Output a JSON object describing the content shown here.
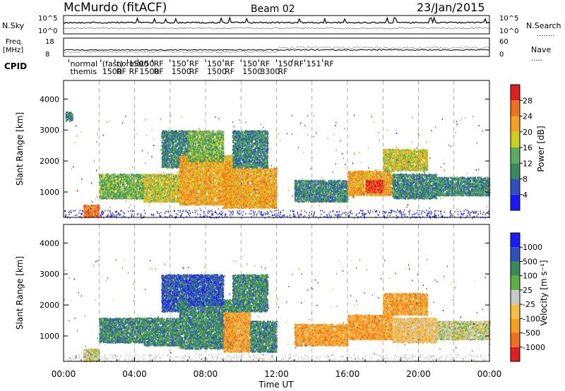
{
  "header": {
    "station": "McMurdo (fitACF)",
    "beam": "Beam 02",
    "date": "23/Jan/2015"
  },
  "noise_panel": {
    "left_label": "N.Sky",
    "right_label": "N.Search",
    "left_ticks": [
      "10^5",
      "10^0"
    ],
    "right_ticks": [
      "10^5",
      "10^0"
    ]
  },
  "freq_panel": {
    "left_label_1": "Freq.",
    "left_label_2": "[MHz]",
    "right_label": "Nave",
    "left_ticks": [
      "18",
      "8"
    ],
    "right_ticks": [
      "60",
      "0"
    ]
  },
  "cpid": {
    "label": "CPID",
    "entries": [
      {
        "hour": 0.3,
        "line1": "normal",
        "line2": "themis"
      },
      {
        "hour": 2.1,
        "line1": "(fast)",
        "line2": "1500"
      },
      {
        "hour": 2.9,
        "line1": "normal",
        "line2": "RF"
      },
      {
        "hour": 3.6,
        "line1": "1500",
        "line2": "RF"
      },
      {
        "hour": 4.2,
        "line1": "150",
        "line2": "1500"
      },
      {
        "hour": 5.0,
        "line1": "RF",
        "line2": "RF"
      },
      {
        "hour": 6.0,
        "line1": "150",
        "line2": "1500"
      },
      {
        "hour": 7.0,
        "line1": "RF",
        "line2": "RF"
      },
      {
        "hour": 8.0,
        "line1": "150",
        "line2": "1500"
      },
      {
        "hour": 9.0,
        "line1": "RF",
        "line2": "RF"
      },
      {
        "hour": 10.0,
        "line1": "150",
        "line2": "1500"
      },
      {
        "hour": 11.0,
        "line1": "RF",
        "line2": "3300"
      },
      {
        "hour": 12.0,
        "line1": "150",
        "line2": "RF"
      },
      {
        "hour": 12.9,
        "line1": "RF",
        "line2": ""
      },
      {
        "hour": 13.6,
        "line1": "151",
        "line2": ""
      },
      {
        "hour": 14.6,
        "line1": "RF",
        "line2": ""
      }
    ]
  },
  "chart_data": [
    {
      "type": "heatmap",
      "name": "power",
      "ylabel": "Slant Range [km]",
      "x_range_hours": [
        0,
        24
      ],
      "ylim": [
        180,
        4600
      ],
      "yticks": [
        1000,
        2000,
        3000,
        4000
      ],
      "colorbar": {
        "label": "Power [dB]",
        "ticks": [
          "4",
          "8",
          "12",
          "16",
          "20",
          "24",
          "28"
        ],
        "colors": [
          "#1a1aff",
          "#3050c0",
          "#3a8a5a",
          "#5aaa60",
          "#c8d020",
          "#f5a020",
          "#f07020",
          "#e02020"
        ]
      },
      "blobs": [
        {
          "t0": 0.1,
          "t1": 0.5,
          "r0": 3300,
          "r1": 3600,
          "level": 2
        },
        {
          "t0": 1.1,
          "t1": 2.0,
          "r0": 200,
          "r1": 600,
          "level": 6
        },
        {
          "t0": 2.0,
          "t1": 4.5,
          "r0": 800,
          "r1": 1600,
          "level": 3
        },
        {
          "t0": 4.5,
          "t1": 6.5,
          "r0": 700,
          "r1": 1600,
          "level": 4
        },
        {
          "t0": 5.5,
          "t1": 7.0,
          "r0": 1800,
          "r1": 3000,
          "level": 2
        },
        {
          "t0": 6.5,
          "t1": 9.5,
          "r0": 600,
          "r1": 2200,
          "level": 5
        },
        {
          "t0": 7.0,
          "t1": 9.0,
          "r0": 2000,
          "r1": 3000,
          "level": 3
        },
        {
          "t0": 9.0,
          "t1": 12.0,
          "r0": 500,
          "r1": 1800,
          "level": 5
        },
        {
          "t0": 9.5,
          "t1": 11.5,
          "r0": 1800,
          "r1": 3000,
          "level": 2
        },
        {
          "t0": 13.0,
          "t1": 16.0,
          "r0": 700,
          "r1": 1400,
          "level": 2
        },
        {
          "t0": 16.0,
          "t1": 18.5,
          "r0": 900,
          "r1": 1700,
          "level": 5
        },
        {
          "t0": 17.0,
          "t1": 18.0,
          "r0": 1000,
          "r1": 1400,
          "level": 7
        },
        {
          "t0": 18.0,
          "t1": 20.5,
          "r0": 1700,
          "r1": 2400,
          "level": 4
        },
        {
          "t0": 18.5,
          "t1": 21.0,
          "r0": 800,
          "r1": 1600,
          "level": 2
        },
        {
          "t0": 21.0,
          "t1": 24.0,
          "r0": 900,
          "r1": 1500,
          "level": 2
        }
      ]
    },
    {
      "type": "heatmap",
      "name": "velocity",
      "ylabel": "Slant Range [km]",
      "xlabel": "Time UT",
      "x_range_hours": [
        0,
        24
      ],
      "xticks": [
        "00:00",
        "04:00",
        "08:00",
        "12:00",
        "16:00",
        "20:00",
        "00:00"
      ],
      "ylim": [
        180,
        4600
      ],
      "yticks": [
        1000,
        2000,
        3000,
        4000
      ],
      "colorbar": {
        "label": "Velocity [m s⁻¹]",
        "ticks": [
          "-1000",
          "-500",
          "-100",
          "-25",
          "25",
          "100",
          "500",
          "1000"
        ],
        "colors": [
          "#e02020",
          "#f07020",
          "#f5a020",
          "#f5c040",
          "#c8c8c8",
          "#5ab040",
          "#3a8a5a",
          "#3050c0",
          "#1a1aff"
        ]
      },
      "blobs": [
        {
          "t0": 1.1,
          "t1": 2.0,
          "r0": 200,
          "r1": 600,
          "level": 4
        },
        {
          "t0": 2.0,
          "t1": 4.5,
          "r0": 800,
          "r1": 1600,
          "level": 6
        },
        {
          "t0": 4.5,
          "t1": 6.5,
          "r0": 700,
          "r1": 1600,
          "level": 6
        },
        {
          "t0": 5.5,
          "t1": 7.0,
          "r0": 1800,
          "r1": 3000,
          "level": 7
        },
        {
          "t0": 6.5,
          "t1": 9.5,
          "r0": 600,
          "r1": 2200,
          "level": 6
        },
        {
          "t0": 7.0,
          "t1": 9.0,
          "r0": 2000,
          "r1": 3000,
          "level": 7
        },
        {
          "t0": 9.0,
          "t1": 10.5,
          "r0": 500,
          "r1": 1800,
          "level": 2
        },
        {
          "t0": 10.5,
          "t1": 12.0,
          "r0": 500,
          "r1": 1500,
          "level": 6
        },
        {
          "t0": 9.5,
          "t1": 11.5,
          "r0": 1800,
          "r1": 3000,
          "level": 6
        },
        {
          "t0": 13.0,
          "t1": 16.0,
          "r0": 700,
          "r1": 1400,
          "level": 2
        },
        {
          "t0": 16.0,
          "t1": 18.5,
          "r0": 900,
          "r1": 1700,
          "level": 2
        },
        {
          "t0": 18.0,
          "t1": 20.5,
          "r0": 1700,
          "r1": 2400,
          "level": 2
        },
        {
          "t0": 18.5,
          "t1": 21.0,
          "r0": 800,
          "r1": 1600,
          "level": 3
        },
        {
          "t0": 21.0,
          "t1": 24.0,
          "r0": 900,
          "r1": 1500,
          "level": 4
        }
      ]
    }
  ]
}
